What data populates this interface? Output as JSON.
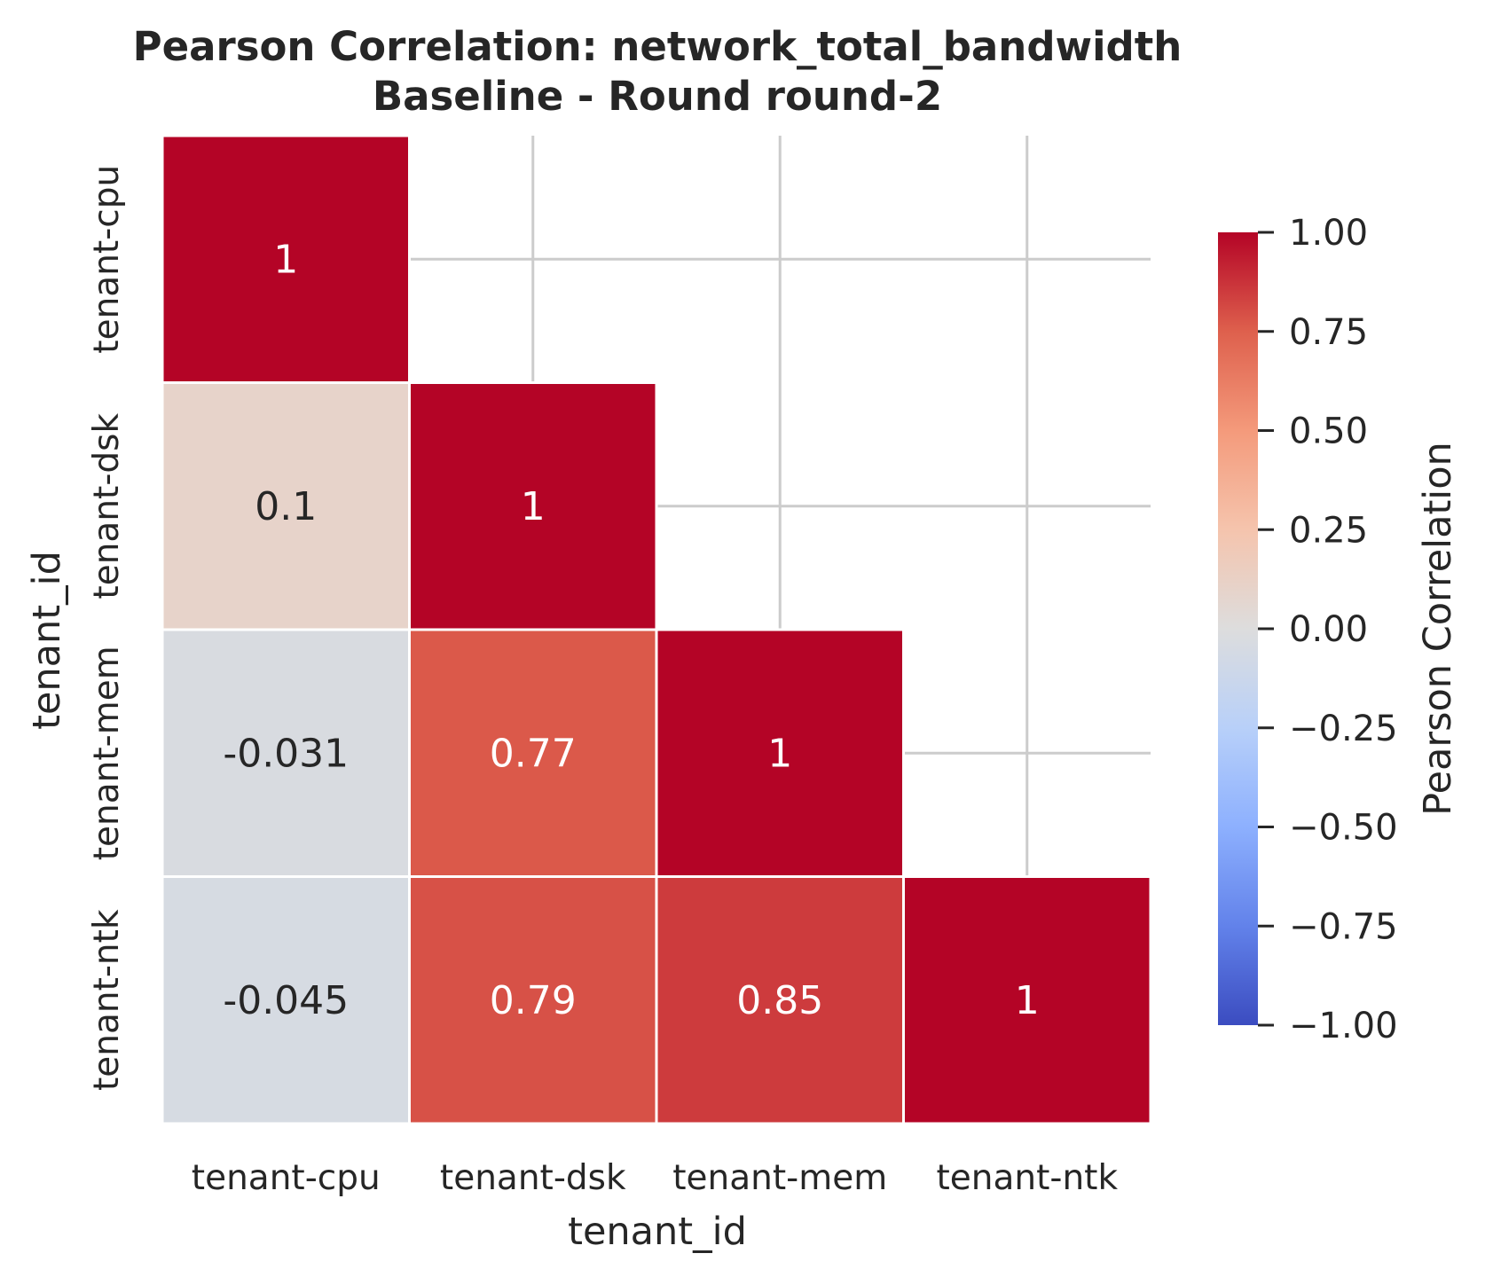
{
  "chart_data": {
    "type": "heatmap",
    "title_lines": [
      "Pearson Correlation: network_total_bandwidth",
      "Baseline - Round round-2"
    ],
    "xlabel": "tenant_id",
    "ylabel": "tenant_id",
    "x_categories": [
      "tenant-cpu",
      "tenant-dsk",
      "tenant-mem",
      "tenant-ntk"
    ],
    "y_categories": [
      "tenant-cpu",
      "tenant-dsk",
      "tenant-mem",
      "tenant-ntk"
    ],
    "mask": "upper-triangle",
    "cells": [
      {
        "row": 0,
        "col": 0,
        "value": 1,
        "label": "1"
      },
      {
        "row": 1,
        "col": 0,
        "value": 0.1,
        "label": "0.1"
      },
      {
        "row": 1,
        "col": 1,
        "value": 1,
        "label": "1"
      },
      {
        "row": 2,
        "col": 0,
        "value": -0.031,
        "label": "-0.031"
      },
      {
        "row": 2,
        "col": 1,
        "value": 0.77,
        "label": "0.77"
      },
      {
        "row": 2,
        "col": 2,
        "value": 1,
        "label": "1"
      },
      {
        "row": 3,
        "col": 0,
        "value": -0.045,
        "label": "-0.045"
      },
      {
        "row": 3,
        "col": 1,
        "value": 0.79,
        "label": "0.79"
      },
      {
        "row": 3,
        "col": 2,
        "value": 0.85,
        "label": "0.85"
      },
      {
        "row": 3,
        "col": 3,
        "value": 1,
        "label": "1"
      }
    ],
    "colorbar": {
      "label": "Pearson Correlation",
      "colormap": "coolwarm",
      "range": [
        -1,
        1
      ],
      "ticks": [
        {
          "value": 1.0,
          "label": "1.00"
        },
        {
          "value": 0.75,
          "label": "0.75"
        },
        {
          "value": 0.5,
          "label": "0.50"
        },
        {
          "value": 0.25,
          "label": "0.25"
        },
        {
          "value": 0.0,
          "label": "0.00"
        },
        {
          "value": -0.25,
          "label": "−0.25"
        },
        {
          "value": -0.5,
          "label": "−0.50"
        },
        {
          "value": -0.75,
          "label": "−0.75"
        },
        {
          "value": -1.0,
          "label": "−1.00"
        }
      ]
    },
    "grid": true
  }
}
